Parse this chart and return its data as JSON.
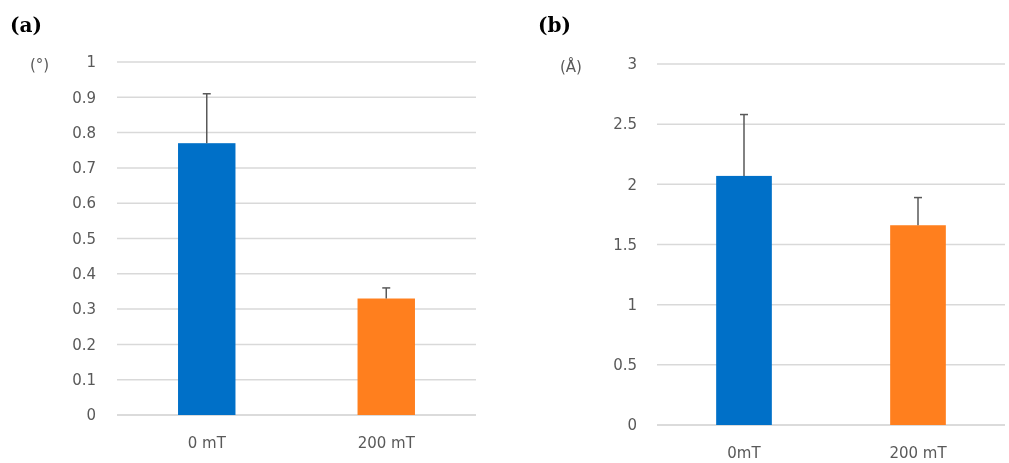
{
  "chart_data": [
    {
      "type": "bar",
      "title": "(a)",
      "ylabel": "(°)",
      "categories": [
        "0 mT",
        "200 mT"
      ],
      "values": [
        0.77,
        0.33
      ],
      "colors": [
        "#0070c8",
        "#ff7f1e"
      ],
      "errors": [
        [
          0.77,
          0.91
        ],
        [
          0.33,
          0.36
        ]
      ],
      "ylim": [
        0,
        1
      ],
      "yticks": [
        0,
        0.1,
        0.2,
        0.3,
        0.4,
        0.5,
        0.6,
        0.7,
        0.8,
        0.9,
        1
      ],
      "grid": "y"
    },
    {
      "type": "bar",
      "title": "(b)",
      "ylabel": "(Å)",
      "categories": [
        "0mT",
        "200 mT"
      ],
      "values": [
        2.07,
        1.66
      ],
      "colors": [
        "#0070c8",
        "#ff7f1e"
      ],
      "errors": [
        [
          2.07,
          2.58
        ],
        [
          1.66,
          1.89
        ]
      ],
      "ylim": [
        0,
        3
      ],
      "yticks": [
        0,
        0.5,
        1,
        1.5,
        2,
        2.5,
        3
      ],
      "grid": "y"
    }
  ]
}
